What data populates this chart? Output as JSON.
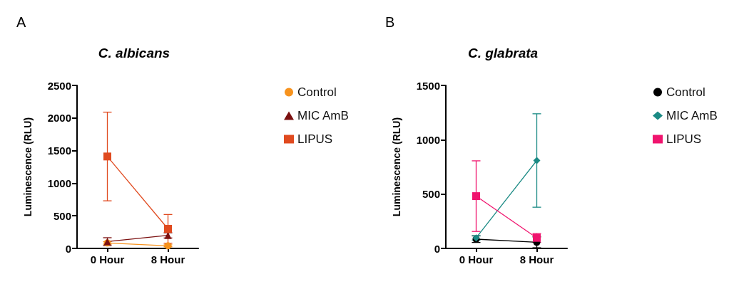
{
  "chart_data": [
    {
      "type": "line",
      "title": "C. albicans",
      "ylabel": "Luminescence (RLU)",
      "categories": [
        "0 Hour",
        "8 Hour"
      ],
      "ylim": [
        0,
        2500
      ],
      "yticks": [
        0,
        500,
        1000,
        1500,
        2000,
        2500
      ],
      "grid": false,
      "legend": "right",
      "annotations": [
        "A"
      ],
      "series": [
        {
          "name": "Control",
          "color": "#f7931e",
          "marker": "circle",
          "values": [
            84,
            40
          ],
          "errors": [
            20,
            15
          ]
        },
        {
          "name": "MIC AmB",
          "color": "#7b1010",
          "marker": "triangle",
          "values": [
            104,
            200
          ],
          "errors": [
            60,
            40
          ]
        },
        {
          "name": "LIPUS",
          "color": "#e04a1f",
          "marker": "square",
          "values": [
            1410,
            300
          ],
          "errors": [
            680,
            220
          ]
        }
      ]
    },
    {
      "type": "line",
      "title": "C. glabrata",
      "ylabel": "Luminescence (RLU)",
      "categories": [
        "0 Hour",
        "8 Hour"
      ],
      "ylim": [
        0,
        1500
      ],
      "yticks": [
        0,
        500,
        1000,
        1500
      ],
      "grid": false,
      "legend": "right",
      "annotations": [
        "B"
      ],
      "series": [
        {
          "name": "Control",
          "color": "#000000",
          "marker": "circle",
          "values": [
            85,
            56
          ],
          "errors": [
            30,
            50
          ]
        },
        {
          "name": "MIC AmB",
          "color": "#1a8a84",
          "marker": "diamond",
          "values": [
            97,
            809
          ],
          "errors": [
            20,
            430
          ]
        },
        {
          "name": "LIPUS",
          "color": "#f0146e",
          "marker": "square",
          "values": [
            481,
            97
          ],
          "errors": [
            325,
            40
          ]
        }
      ]
    }
  ]
}
